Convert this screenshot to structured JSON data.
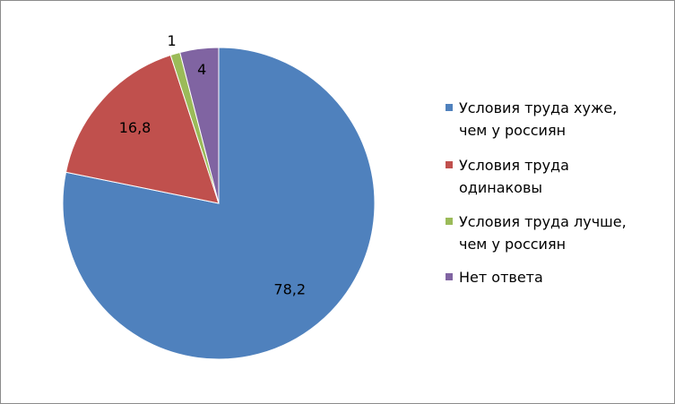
{
  "chart_data": {
    "type": "pie",
    "categories": [
      "Условия труда хуже, чем у россиян",
      "Условия труда одинаковы",
      "Условия труда лучше, чем у россиян",
      "Нет ответа"
    ],
    "values": [
      78.2,
      16.8,
      1,
      4
    ],
    "value_labels": [
      "78,2",
      "16,8",
      "1",
      "4"
    ],
    "colors": [
      "#4f81bd",
      "#c0504d",
      "#9bbb59",
      "#8064a2"
    ],
    "legend": "right"
  }
}
